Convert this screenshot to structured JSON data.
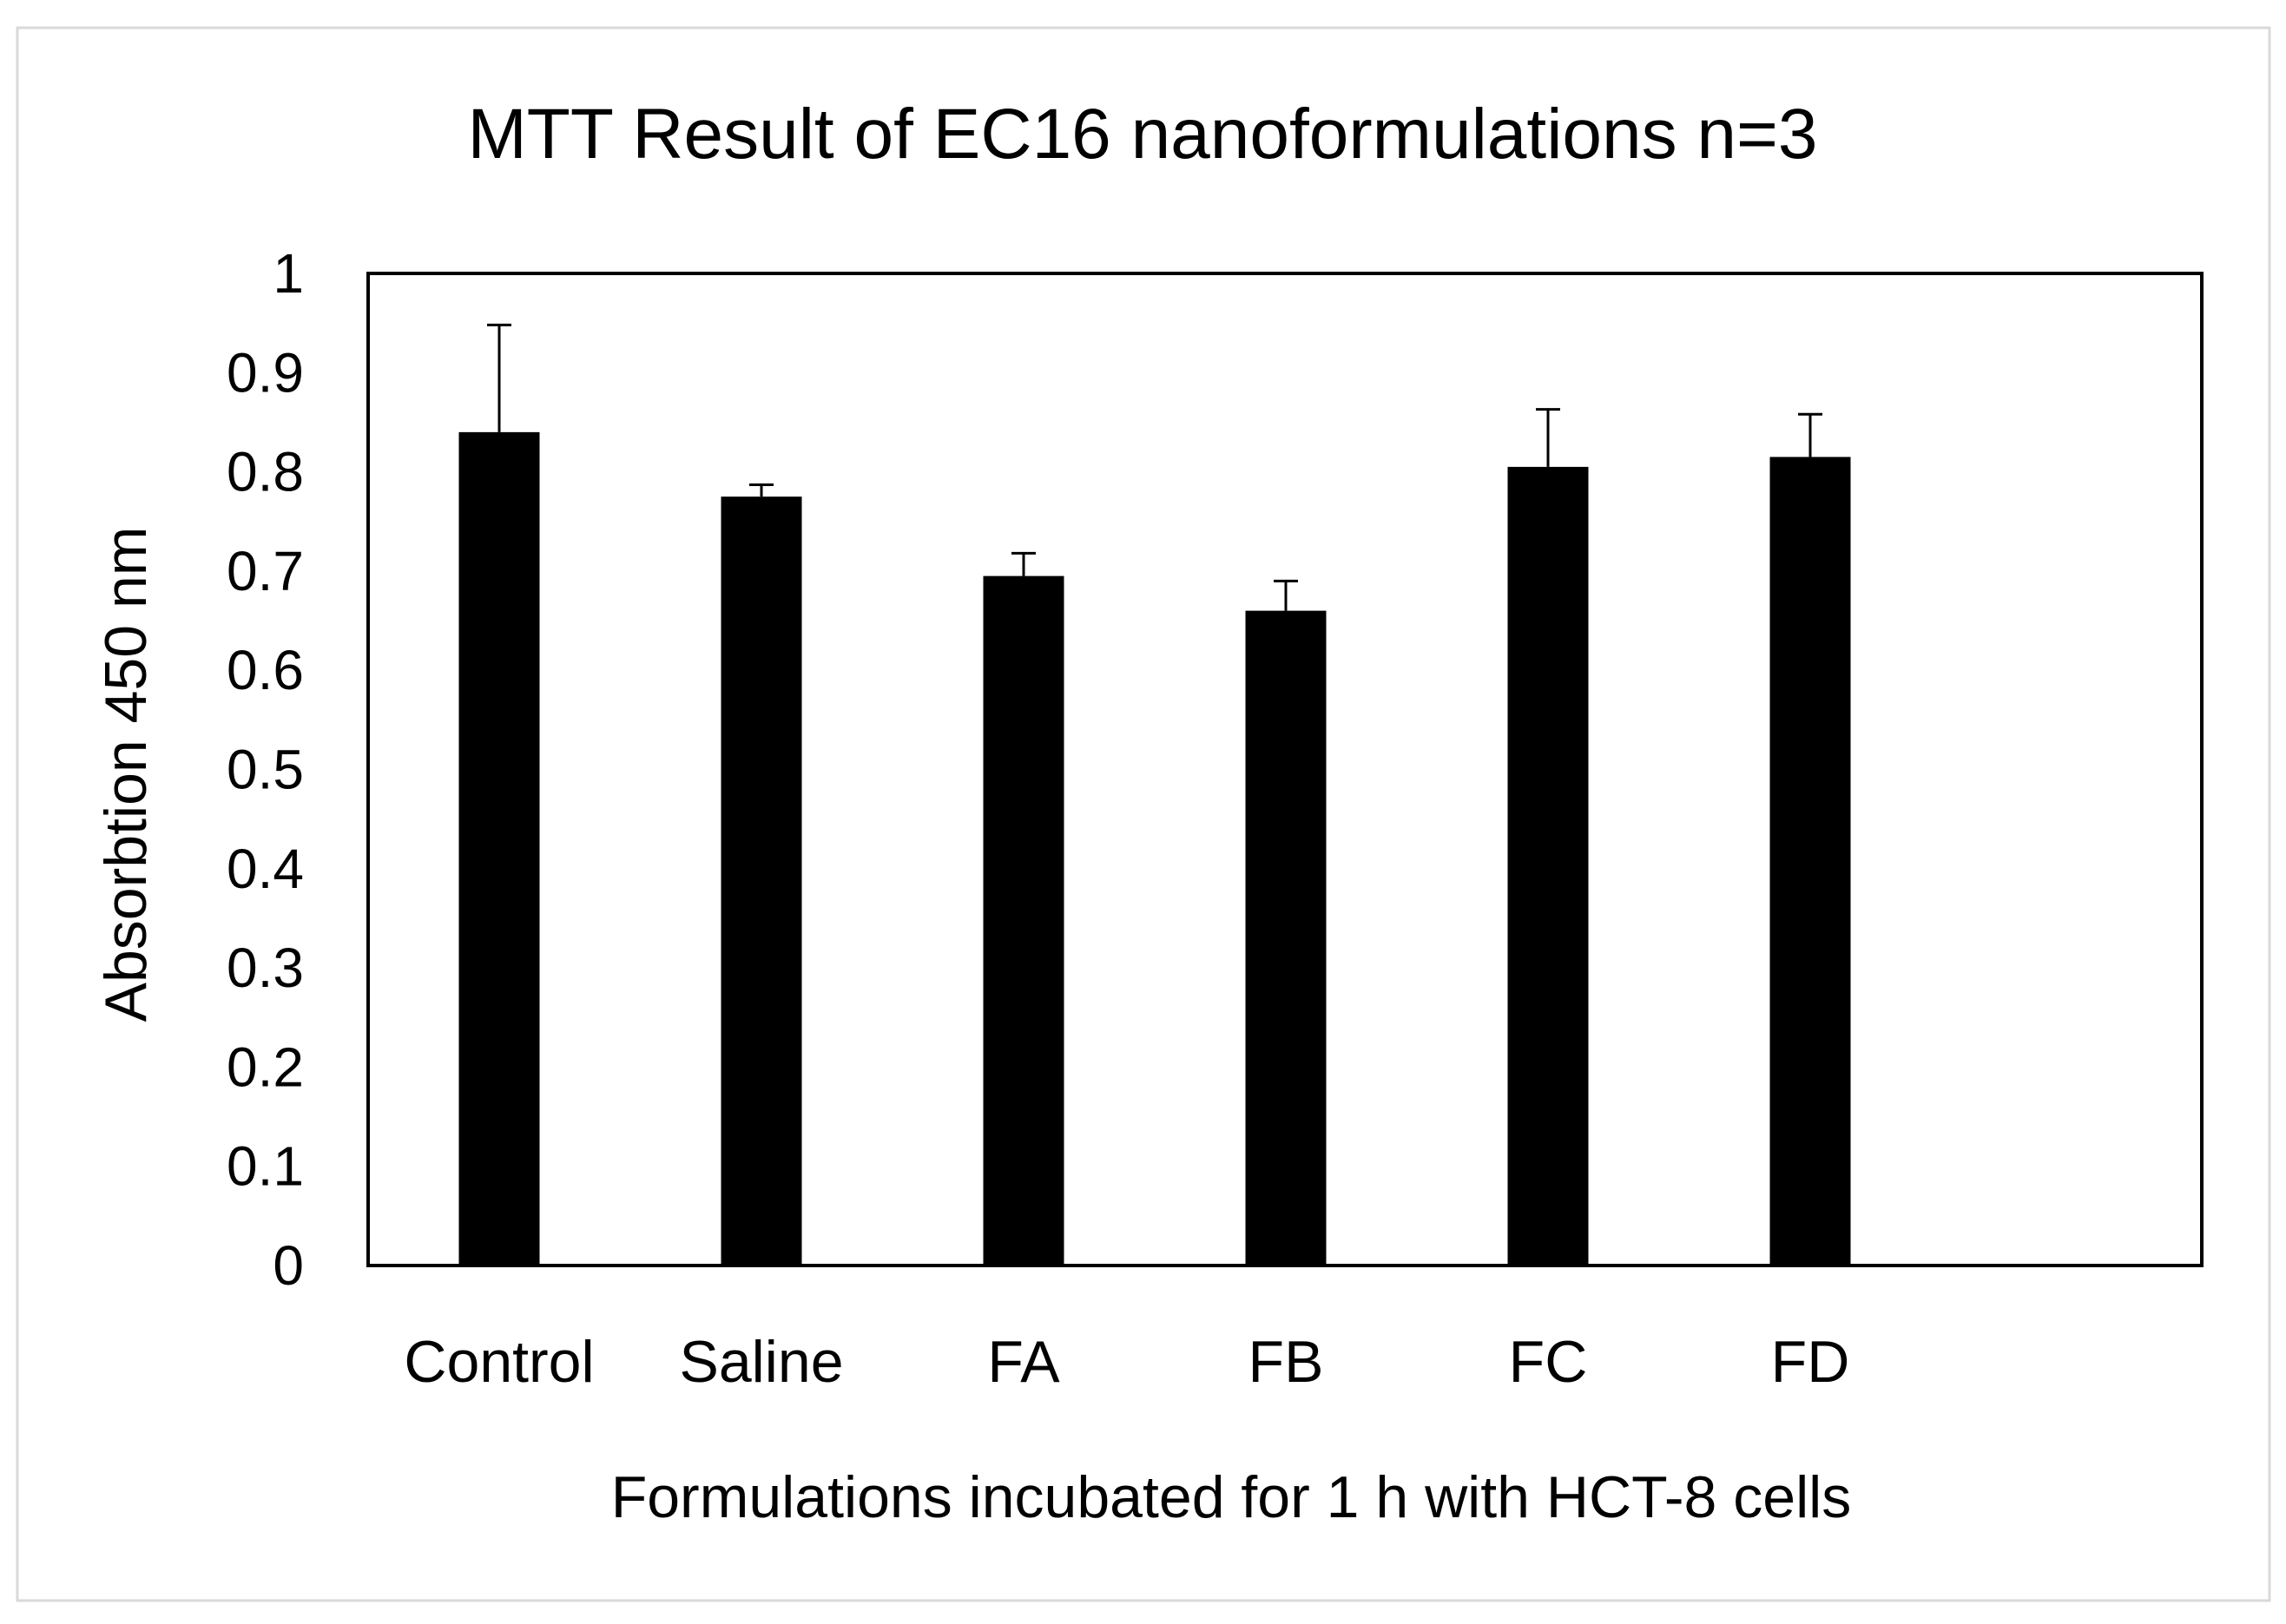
{
  "colors": {
    "bar": "#000000",
    "background": "#ffffff",
    "frame_border": "#d9d9d9"
  },
  "chart_data": {
    "type": "bar",
    "title": "MTT Result of EC16 nanoformulations n=3",
    "xlabel": "Formulations incubated for 1 h with HCT-8 cells",
    "ylabel": "Absorbtion 450 nm",
    "categories": [
      "Control",
      "Saline",
      "FA",
      "FB",
      "FC",
      "FD"
    ],
    "values": [
      0.84,
      0.775,
      0.695,
      0.66,
      0.805,
      0.815
    ],
    "error": [
      0.108,
      0.012,
      0.023,
      0.03,
      0.058,
      0.043
    ],
    "ylim": [
      0,
      1
    ],
    "yticks": [
      "0",
      "0.1",
      "0.2",
      "0.3",
      "0.4",
      "0.5",
      "0.6",
      "0.7",
      "0.8",
      "0.9",
      "1"
    ],
    "grid": false,
    "legend": "none"
  }
}
